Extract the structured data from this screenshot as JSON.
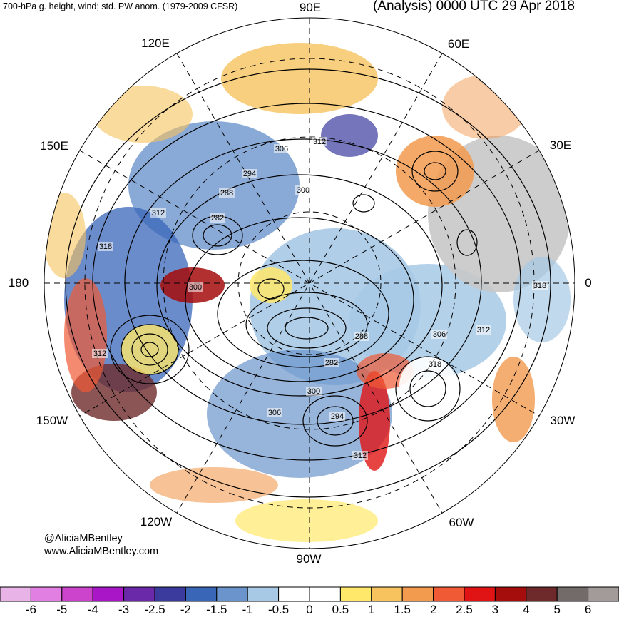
{
  "header": {
    "left": "700-hPa g. height, wind; std. PW anom. (1979-2009 CFSR)",
    "right": "(Analysis) 0000 UTC 29 Apr 2018"
  },
  "longitude_labels": [
    {
      "id": "90E",
      "text": "90E"
    },
    {
      "id": "60E",
      "text": "60E"
    },
    {
      "id": "30E",
      "text": "30E"
    },
    {
      "id": "0",
      "text": "0"
    },
    {
      "id": "30W",
      "text": "30W"
    },
    {
      "id": "60W",
      "text": "60W"
    },
    {
      "id": "90W",
      "text": "90W"
    },
    {
      "id": "120W",
      "text": "120W"
    },
    {
      "id": "150W",
      "text": "150W"
    },
    {
      "id": "180",
      "text": "180"
    },
    {
      "id": "150E",
      "text": "150E"
    },
    {
      "id": "120E",
      "text": "120E"
    }
  ],
  "contour_labels": [
    "306",
    "312",
    "294",
    "288",
    "300",
    "282",
    "312",
    "318",
    "300",
    "312",
    "282",
    "288",
    "306",
    "312",
    "318",
    "318",
    "300",
    "306",
    "294",
    "312"
  ],
  "credit": {
    "handle": "@AliciaMBentley",
    "website": "www.AliciaMBentley.com"
  },
  "colorbar": {
    "colors": [
      "#e8b4e8",
      "#e27fe2",
      "#cc44cc",
      "#a816c8",
      "#6a29a8",
      "#3b3b9e",
      "#3a66b8",
      "#6b94cc",
      "#a7c9e6",
      "#ffffff",
      "#ffffff",
      "#ffe86a",
      "#f6c35e",
      "#f29a4e",
      "#f05a35",
      "#e01414",
      "#a50c0c",
      "#6e2a2a",
      "#736a6a",
      "#a39a9a"
    ],
    "labels": [
      "-6",
      "-5",
      "-4",
      "-3",
      "-2.5",
      "-2",
      "-1.5",
      "-1",
      "-0.5",
      "0",
      "0.5",
      "1",
      "1.5",
      "2",
      "2.5",
      "3",
      "4",
      "5",
      "6"
    ]
  },
  "colors": {
    "ocean_neutral": "#ffffff",
    "land_gray": "#c8c8c8",
    "contour": "#000000"
  }
}
